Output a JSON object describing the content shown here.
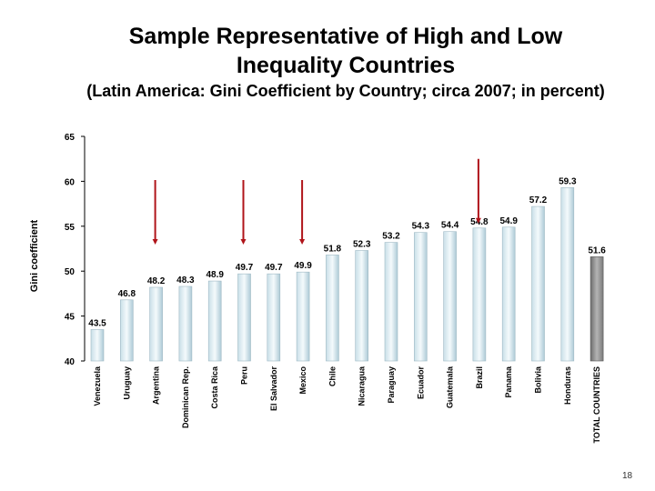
{
  "slide": {
    "title_line1": "Sample Representative of High and Low",
    "title_line2": "Inequality Countries",
    "subtitle": "(Latin America: Gini Coefficient by Country; circa 2007; in percent)",
    "page_number": "18"
  },
  "colors": {
    "bar_light_top": "#c9dfe8",
    "bar_dark_top": "#8a8a8a",
    "arrow": "#b0141a",
    "axis": "#000000"
  },
  "chart_data": {
    "type": "bar",
    "title": "",
    "ylabel": "Gini coefficient",
    "xlabel": "",
    "ylim": [
      40,
      65
    ],
    "yticks": [
      40,
      45,
      50,
      55,
      60,
      65
    ],
    "grid": false,
    "categories": [
      "Venezuela",
      "Uruguay",
      "Argentina",
      "Dominican Rep.",
      "Costa Rica",
      "Peru",
      "El Salvador",
      "Mexico",
      "Chile",
      "Nicaragua",
      "Paraguay",
      "Ecuador",
      "Guatemala",
      "Brazil",
      "Panama",
      "Bolivia",
      "Honduras",
      "TOTAL COUNTRIES"
    ],
    "values": [
      43.5,
      46.8,
      48.2,
      48.3,
      48.9,
      49.7,
      49.7,
      49.9,
      51.8,
      52.3,
      53.2,
      54.3,
      54.4,
      54.8,
      54.9,
      57.2,
      59.3,
      51.6
    ],
    "value_labels": [
      "43.5",
      "46.8",
      "48.2",
      "48.3",
      "48.9",
      "49.7",
      "49.7",
      "49.9",
      "51.8",
      "52.3",
      "53.2",
      "54.3",
      "54.4",
      "54.8",
      "54.9",
      "57.2",
      "59.3",
      "51.6"
    ],
    "highlighted": [
      "Argentina",
      "Peru",
      "Mexico",
      "Brazil"
    ],
    "dark_bars": [
      "TOTAL COUNTRIES"
    ]
  }
}
